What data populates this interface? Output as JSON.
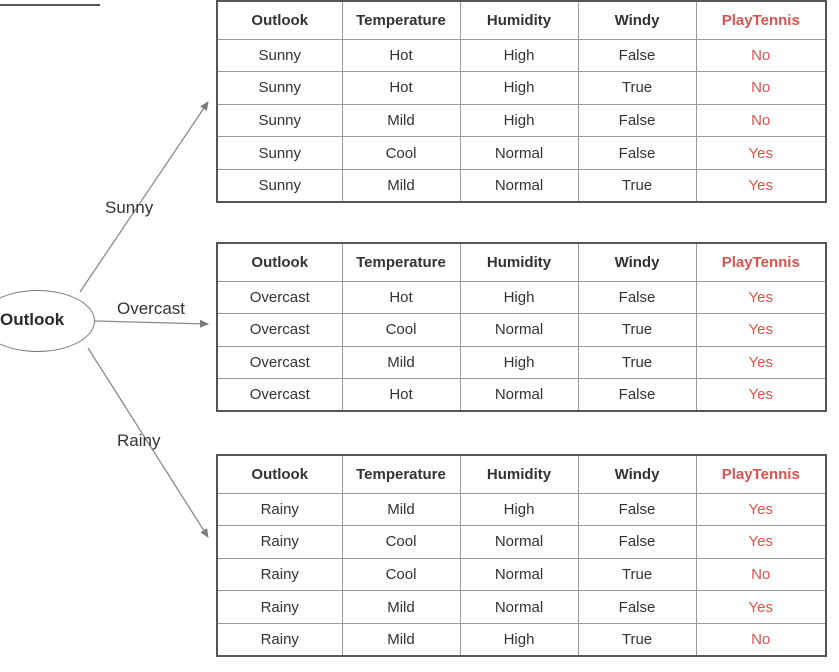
{
  "root": {
    "label": "Outlook"
  },
  "branches": {
    "sunny": "Sunny",
    "overcast": "Overcast",
    "rainy": "Rainy"
  },
  "columns": [
    "Outlook",
    "Temperature",
    "Humidity",
    "Windy",
    "PlayTennis"
  ],
  "tables": {
    "sunny": [
      [
        "Sunny",
        "Hot",
        "High",
        "False",
        "No"
      ],
      [
        "Sunny",
        "Hot",
        "High",
        "True",
        "No"
      ],
      [
        "Sunny",
        "Mild",
        "High",
        "False",
        "No"
      ],
      [
        "Sunny",
        "Cool",
        "Normal",
        "False",
        "Yes"
      ],
      [
        "Sunny",
        "Mild",
        "Normal",
        "True",
        "Yes"
      ]
    ],
    "overcast": [
      [
        "Overcast",
        "Hot",
        "High",
        "False",
        "Yes"
      ],
      [
        "Overcast",
        "Cool",
        "Normal",
        "True",
        "Yes"
      ],
      [
        "Overcast",
        "Mild",
        "High",
        "True",
        "Yes"
      ],
      [
        "Overcast",
        "Hot",
        "Normal",
        "False",
        "Yes"
      ]
    ],
    "rainy": [
      [
        "Rainy",
        "Mild",
        "High",
        "False",
        "Yes"
      ],
      [
        "Rainy",
        "Cool",
        "Normal",
        "False",
        "Yes"
      ],
      [
        "Rainy",
        "Cool",
        "Normal",
        "True",
        "No"
      ],
      [
        "Rainy",
        "Mild",
        "Normal",
        "False",
        "Yes"
      ],
      [
        "Rainy",
        "Mild",
        "High",
        "True",
        "No"
      ]
    ]
  },
  "colors": {
    "target": "#d9534f",
    "border": "#555555",
    "arrow": "#8a8a8a"
  }
}
